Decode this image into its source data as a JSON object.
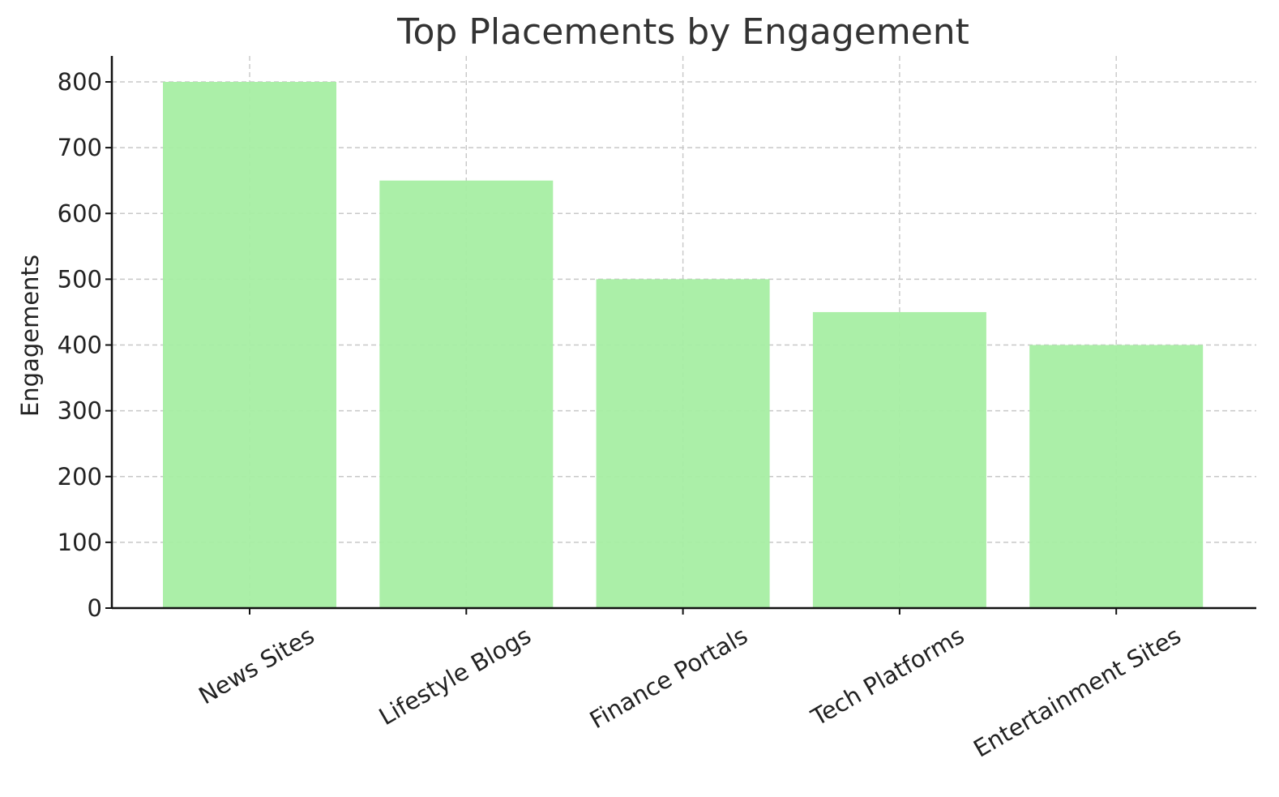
{
  "chart_data": {
    "type": "bar",
    "title": "Top Placements by Engagement",
    "xlabel": "",
    "ylabel": "Engagements",
    "categories": [
      "News Sites",
      "Lifestyle Blogs",
      "Finance Portals",
      "Tech Platforms",
      "Entertainment Sites"
    ],
    "values": [
      800,
      650,
      500,
      450,
      400
    ],
    "ylim": [
      0,
      840
    ],
    "yticks": [
      0,
      100,
      200,
      300,
      400,
      500,
      600,
      700,
      800
    ],
    "bar_color": "#a6eea3",
    "grid": true,
    "legend": "none"
  }
}
